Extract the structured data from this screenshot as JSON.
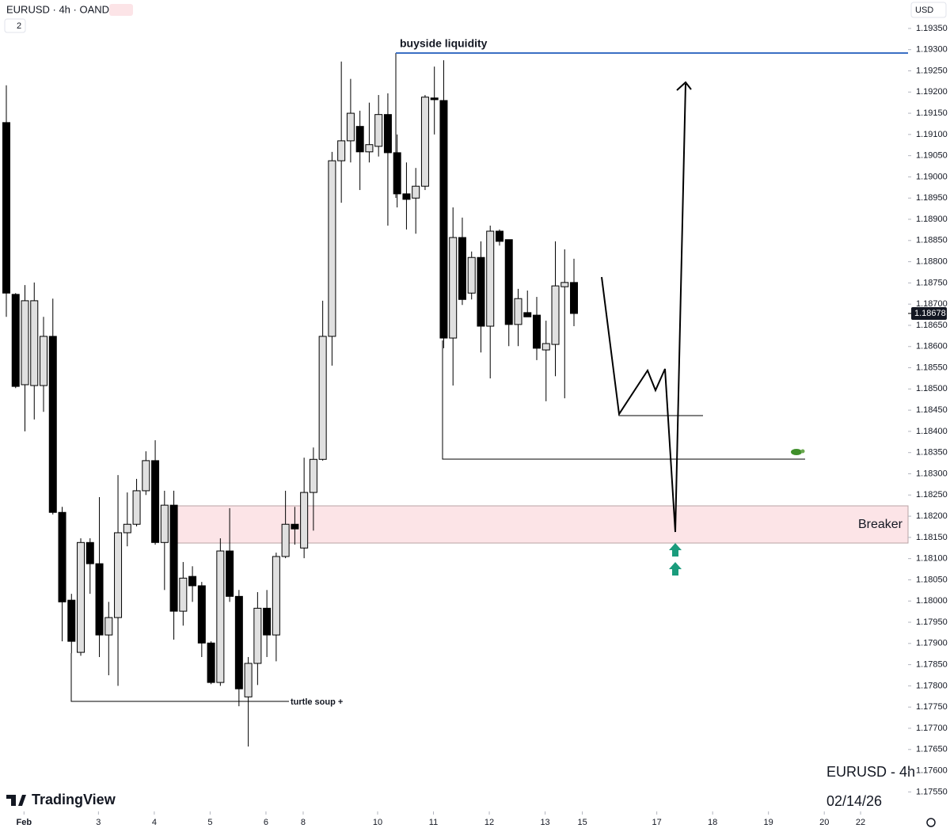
{
  "chart_data": {
    "type": "candlestick",
    "symbol": "EURUSD · 4h · OANDA",
    "interval_badge": "2",
    "currency": "USD",
    "watermark_symbol": "EURUSD - 4h",
    "watermark_date": "02/14/26",
    "brand": "TradingView",
    "annotations": {
      "buyside": "buyside liquidity",
      "turtle": "turtle soup +",
      "breaker": "Breaker"
    },
    "up_color": "#e0e0e0",
    "down_color": "#000000",
    "open": [
      1.19128,
      1.18723,
      1.1851,
      1.18508,
      1.18508,
      1.18624,
      1.18209,
      1.18002,
      1.17879,
      1.18138,
      1.18088,
      1.1792,
      1.17961,
      1.18161,
      1.18181,
      1.1826,
      1.18331,
      1.18138,
      1.18226,
      1.17976,
      1.18058,
      1.18036,
      1.17901,
      1.17808,
      1.18118,
      1.18011,
      1.17774,
      1.17853,
      1.17983,
      1.1792,
      1.18105,
      1.18181,
      1.18125,
      1.18256,
      1.18334,
      1.18624,
      1.19038,
      1.19085,
      1.19119,
      1.19059,
      1.19072,
      1.19147,
      1.19057,
      1.1896,
      1.1895,
      1.18978,
      1.19186,
      1.1918,
      1.1862,
      1.18857,
      1.18726,
      1.1881,
      1.18648,
      1.18872,
      1.18852,
      1.18652,
      1.1868,
      1.18674,
      1.18592,
      1.18605,
      1.18741,
      1.18751
    ],
    "high": [
      1.19216,
      1.18726,
      1.18745,
      1.18751,
      1.1867,
      1.18713,
      1.18222,
      1.18017,
      1.18148,
      1.18148,
      1.18245,
      1.17998,
      1.18297,
      1.18256,
      1.18288,
      1.18353,
      1.18379,
      1.1826,
      1.1826,
      1.18092,
      1.18082,
      1.18045,
      1.17905,
      1.18148,
      1.18219,
      1.18026,
      1.17868,
      1.18021,
      1.18026,
      1.18114,
      1.1826,
      1.18222,
      1.18338,
      1.18362,
      1.18708,
      1.19059,
      1.19272,
      1.19231,
      1.19156,
      1.19175,
      1.19193,
      1.19197,
      1.191,
      1.19034,
      1.19021,
      1.19193,
      1.1926,
      1.19275,
      1.18928,
      1.18904,
      1.18824,
      1.18848,
      1.18885,
      1.18876,
      1.18852,
      1.18736,
      1.18732,
      1.18717,
      1.18661,
      1.18848,
      1.18829,
      1.18807
    ],
    "low": [
      1.1867,
      1.18502,
      1.184,
      1.18428,
      1.18446,
      1.18204,
      1.17905,
      1.17877,
      1.17871,
      1.18017,
      1.17868,
      1.17825,
      1.178,
      1.18129,
      1.18176,
      1.1825,
      1.18133,
      1.18026,
      1.17909,
      1.17942,
      1.17998,
      1.17868,
      1.17804,
      1.178,
      1.17998,
      1.17752,
      1.17657,
      1.17802,
      1.17868,
      1.17858,
      1.18101,
      1.18133,
      1.18101,
      1.18166,
      1.18331,
      1.18555,
      1.18939,
      1.19034,
      1.18969,
      1.19034,
      1.19048,
      1.18885,
      1.18928,
      1.18876,
      1.18866,
      1.18969,
      1.191,
      1.18596,
      1.18508,
      1.18698,
      1.18711,
      1.18586,
      1.18525,
      1.18838,
      1.18601,
      1.18601,
      1.1867,
      1.18568,
      1.18471,
      1.1853,
      1.18478,
      1.18648
    ],
    "close": [
      1.18726,
      1.18506,
      1.18708,
      1.18708,
      1.18624,
      1.18209,
      1.17998,
      1.17905,
      1.18138,
      1.18088,
      1.1792,
      1.17961,
      1.18161,
      1.18181,
      1.1826,
      1.18331,
      1.18138,
      1.18226,
      1.17976,
      1.18054,
      1.18036,
      1.17901,
      1.17808,
      1.18118,
      1.18011,
      1.17793,
      1.17853,
      1.17983,
      1.1792,
      1.18105,
      1.18181,
      1.1817,
      1.18256,
      1.18334,
      1.18624,
      1.19038,
      1.19085,
      1.1915,
      1.19059,
      1.19076,
      1.19147,
      1.19057,
      1.1896,
      1.18947,
      1.18978,
      1.19188,
      1.19182,
      1.1862,
      1.18857,
      1.18711,
      1.1881,
      1.18648,
      1.18872,
      1.18848,
      1.18652,
      1.18713,
      1.1867,
      1.18596,
      1.18607,
      1.18743,
      1.18751,
      1.18678
    ],
    "last_price": 1.18678,
    "xlim": [
      -0.68,
      96.9
    ],
    "xticks": [
      {
        "value": 1.9,
        "label": "Feb"
      },
      {
        "value": 9.9,
        "label": "3"
      },
      {
        "value": 15.9,
        "label": "4"
      },
      {
        "value": 21.9,
        "label": "5"
      },
      {
        "value": 27.9,
        "label": "6"
      },
      {
        "value": 31.9,
        "label": "8"
      },
      {
        "value": 39.9,
        "label": "10"
      },
      {
        "value": 45.9,
        "label": "11"
      },
      {
        "value": 51.9,
        "label": "12"
      },
      {
        "value": 57.9,
        "label": "13"
      },
      {
        "value": 61.9,
        "label": "15"
      },
      {
        "value": 69.9,
        "label": "17"
      },
      {
        "value": 75.9,
        "label": "18"
      },
      {
        "value": 81.9,
        "label": "19"
      },
      {
        "value": 87.9,
        "label": "20"
      },
      {
        "value": 91.8,
        "label": "22"
      }
    ],
    "ylim": [
      1.17504,
      1.19417
    ],
    "yticks": [
      {
        "value": 1.1755,
        "label": "1.17550"
      },
      {
        "value": 1.176,
        "label": "1.17600"
      },
      {
        "value": 1.1765,
        "label": "1.17650"
      },
      {
        "value": 1.177,
        "label": "1.17700"
      },
      {
        "value": 1.1775,
        "label": "1.17750"
      },
      {
        "value": 1.178,
        "label": "1.17800"
      },
      {
        "value": 1.1785,
        "label": "1.17850"
      },
      {
        "value": 1.179,
        "label": "1.17900"
      },
      {
        "value": 1.1795,
        "label": "1.17950"
      },
      {
        "value": 1.18,
        "label": "1.18000"
      },
      {
        "value": 1.1805,
        "label": "1.18050"
      },
      {
        "value": 1.181,
        "label": "1.18100"
      },
      {
        "value": 1.1815,
        "label": "1.18150"
      },
      {
        "value": 1.182,
        "label": "1.18200"
      },
      {
        "value": 1.1825,
        "label": "1.18250"
      },
      {
        "value": 1.183,
        "label": "1.18300"
      },
      {
        "value": 1.1835,
        "label": "1.18350"
      },
      {
        "value": 1.184,
        "label": "1.18400"
      },
      {
        "value": 1.1845,
        "label": "1.18450"
      },
      {
        "value": 1.185,
        "label": "1.18500"
      },
      {
        "value": 1.1855,
        "label": "1.18550"
      },
      {
        "value": 1.186,
        "label": "1.18600"
      },
      {
        "value": 1.1865,
        "label": "1.18650"
      },
      {
        "value": 1.187,
        "label": "1.18700"
      },
      {
        "value": 1.1875,
        "label": "1.18750"
      },
      {
        "value": 1.188,
        "label": "1.18800"
      },
      {
        "value": 1.1885,
        "label": "1.18850"
      },
      {
        "value": 1.189,
        "label": "1.18900"
      },
      {
        "value": 1.1895,
        "label": "1.18950"
      },
      {
        "value": 1.19,
        "label": "1.19000"
      },
      {
        "value": 1.1905,
        "label": "1.19050"
      },
      {
        "value": 1.191,
        "label": "1.19100"
      },
      {
        "value": 1.1915,
        "label": "1.19150"
      },
      {
        "value": 1.192,
        "label": "1.19200"
      },
      {
        "value": 1.1925,
        "label": "1.19250"
      },
      {
        "value": 1.193,
        "label": "1.19300"
      },
      {
        "value": 1.1935,
        "label": "1.19350"
      }
    ],
    "grid": false
  }
}
